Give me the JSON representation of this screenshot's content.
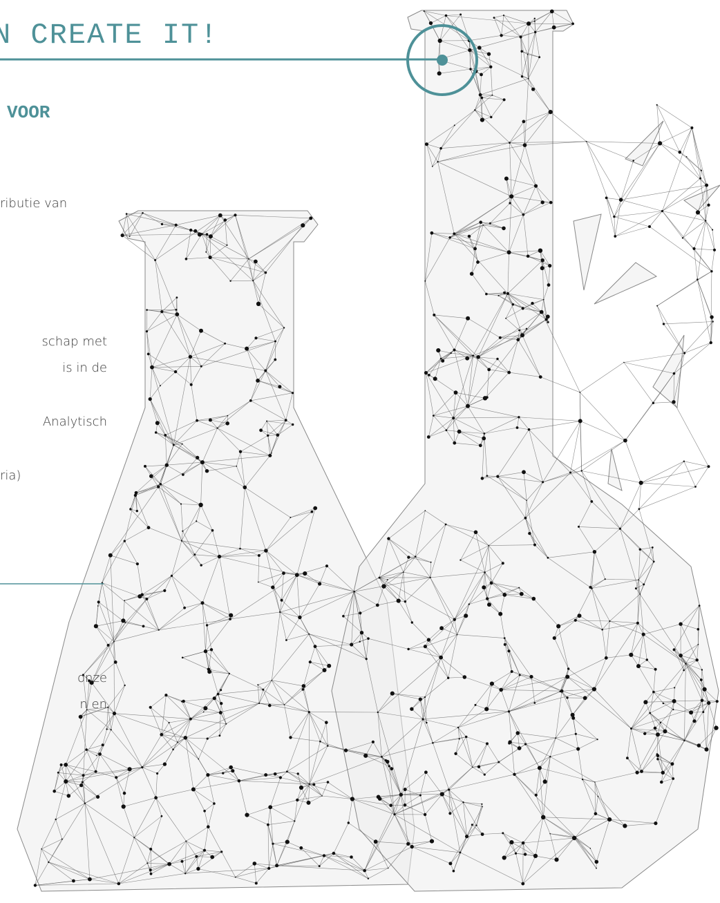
{
  "header": {
    "title": "N CREATE IT!",
    "subtitle": "VOOR"
  },
  "paragraphs": [
    {
      "lines": [
        "ributie van"
      ]
    },
    {
      "lines": [
        "schap met",
        "is in de",
        "Analytisch",
        "ria)"
      ]
    },
    {
      "lines": [
        "onze",
        "n en"
      ]
    }
  ]
}
